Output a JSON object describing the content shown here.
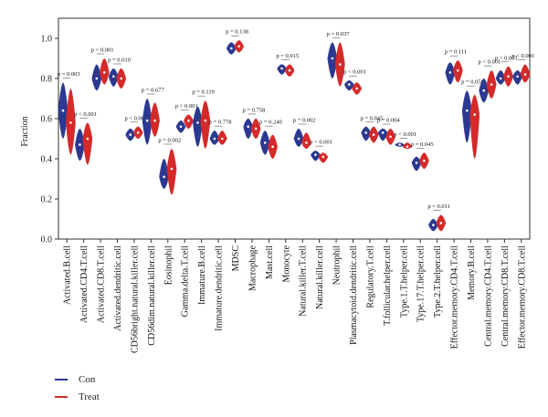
{
  "chart_data": {
    "type": "violin",
    "ylabel": "Fraction",
    "ylim": [
      0.0,
      1.1
    ],
    "yticks": [
      "0.0",
      "0.2",
      "0.4",
      "0.6",
      "0.8",
      "1.0"
    ],
    "legend": {
      "placement": "bottom-left"
    },
    "colors": {
      "Con": "#2b3990",
      "Treat": "#d42a2a"
    },
    "series": [
      {
        "name": "Con"
      },
      {
        "name": "Treat"
      }
    ],
    "categories": [
      "Activated.B.cell",
      "Activated.CD4.T.cell",
      "Activated.CD8.T.cell",
      "Activated.dendritic.cell",
      "CD56bright.natural.killer.cell",
      "CD56dim.natural.killer.cell",
      "Eosinophil",
      "Gamma.delta.T.cell",
      "Immature.B.cell",
      "Immature.dendritic.cell",
      "MDSC",
      "Macrophage",
      "Mast.cell",
      "Monocyte",
      "Natural.killer.T.cell",
      "Natural.killer.cell",
      "Neutrophil",
      "Plasmacytoid.dendritic.cell",
      "Regulatory.T.cell",
      "T.follicular.helper.cell",
      "Type.1.T.helper.cell",
      "Type.17.T.helper.cell",
      "Type.2.T.helper.cell",
      "Effector.memory.CD4.T.cell",
      "Memory.B.cell",
      "Central.memory.CD4.T.cell",
      "Central.memory.CD8.T.cell",
      "Effector.memory.CD8.T.cell"
    ],
    "p_values": [
      "p = 0.003",
      "p < 0.001",
      "p < 0.001",
      "p = 0.010",
      "p < 0.001",
      "p = 0.677",
      "p = 0.002",
      "p < 0.001",
      "p = 0.119",
      "p = 0.778",
      "p = 0.138",
      "p = 0.758",
      "p = 0.240",
      "p = 0.015",
      "p = 0.002",
      "p < 0.001",
      "p = 0.037",
      "p < 0.001",
      "p = 0.045",
      "p = 0.004",
      "p < 0.001",
      "p = 0.045",
      "p = 0.011",
      "p = 0.111",
      "p = 0.058",
      "p < 0.001",
      "p < 0.001",
      "p < 0.001"
    ],
    "violins": [
      {
        "con": {
          "median": 0.64,
          "min": 0.5,
          "max": 0.78
        },
        "treat": {
          "median": 0.58,
          "min": 0.42,
          "max": 0.75
        }
      },
      {
        "con": {
          "median": 0.47,
          "min": 0.39,
          "max": 0.55
        },
        "treat": {
          "median": 0.5,
          "min": 0.37,
          "max": 0.58
        }
      },
      {
        "con": {
          "median": 0.8,
          "min": 0.74,
          "max": 0.87
        },
        "treat": {
          "median": 0.83,
          "min": 0.77,
          "max": 0.9
        }
      },
      {
        "con": {
          "median": 0.81,
          "min": 0.76,
          "max": 0.85
        },
        "treat": {
          "median": 0.8,
          "min": 0.75,
          "max": 0.85
        }
      },
      {
        "con": {
          "median": 0.52,
          "min": 0.49,
          "max": 0.55
        },
        "treat": {
          "median": 0.53,
          "min": 0.5,
          "max": 0.56
        }
      },
      {
        "con": {
          "median": 0.59,
          "min": 0.47,
          "max": 0.7
        },
        "treat": {
          "median": 0.59,
          "min": 0.51,
          "max": 0.68
        }
      },
      {
        "con": {
          "median": 0.31,
          "min": 0.25,
          "max": 0.4
        },
        "treat": {
          "median": 0.35,
          "min": 0.22,
          "max": 0.45
        }
      },
      {
        "con": {
          "median": 0.56,
          "min": 0.53,
          "max": 0.59
        },
        "treat": {
          "median": 0.59,
          "min": 0.55,
          "max": 0.62
        }
      },
      {
        "con": {
          "median": 0.58,
          "min": 0.46,
          "max": 0.66
        },
        "treat": {
          "median": 0.59,
          "min": 0.45,
          "max": 0.69
        }
      },
      {
        "con": {
          "median": 0.5,
          "min": 0.47,
          "max": 0.54
        },
        "treat": {
          "median": 0.5,
          "min": 0.47,
          "max": 0.54
        }
      },
      {
        "con": {
          "median": 0.95,
          "min": 0.92,
          "max": 0.98
        },
        "treat": {
          "median": 0.96,
          "min": 0.93,
          "max": 0.99
        }
      },
      {
        "con": {
          "median": 0.56,
          "min": 0.5,
          "max": 0.6
        },
        "treat": {
          "median": 0.55,
          "min": 0.5,
          "max": 0.6
        }
      },
      {
        "con": {
          "median": 0.48,
          "min": 0.42,
          "max": 0.54
        },
        "treat": {
          "median": 0.46,
          "min": 0.4,
          "max": 0.52
        }
      },
      {
        "con": {
          "median": 0.85,
          "min": 0.82,
          "max": 0.87
        },
        "treat": {
          "median": 0.84,
          "min": 0.81,
          "max": 0.87
        }
      },
      {
        "con": {
          "median": 0.5,
          "min": 0.46,
          "max": 0.55
        },
        "treat": {
          "median": 0.48,
          "min": 0.45,
          "max": 0.53
        }
      },
      {
        "con": {
          "median": 0.42,
          "min": 0.39,
          "max": 0.44
        },
        "treat": {
          "median": 0.41,
          "min": 0.38,
          "max": 0.43
        }
      },
      {
        "con": {
          "median": 0.9,
          "min": 0.8,
          "max": 0.98
        },
        "treat": {
          "median": 0.87,
          "min": 0.76,
          "max": 0.98
        }
      },
      {
        "con": {
          "median": 0.77,
          "min": 0.74,
          "max": 0.79
        },
        "treat": {
          "median": 0.75,
          "min": 0.72,
          "max": 0.78
        }
      },
      {
        "con": {
          "median": 0.53,
          "min": 0.49,
          "max": 0.56
        },
        "treat": {
          "median": 0.52,
          "min": 0.48,
          "max": 0.56
        }
      },
      {
        "con": {
          "median": 0.53,
          "min": 0.49,
          "max": 0.55
        },
        "treat": {
          "median": 0.51,
          "min": 0.47,
          "max": 0.55
        }
      },
      {
        "con": {
          "median": 0.47,
          "min": 0.46,
          "max": 0.48
        },
        "treat": {
          "median": 0.46,
          "min": 0.45,
          "max": 0.48
        }
      },
      {
        "con": {
          "median": 0.38,
          "min": 0.34,
          "max": 0.41
        },
        "treat": {
          "median": 0.39,
          "min": 0.35,
          "max": 0.43
        }
      },
      {
        "con": {
          "median": 0.07,
          "min": 0.04,
          "max": 0.1
        },
        "treat": {
          "median": 0.08,
          "min": 0.04,
          "max": 0.12
        }
      },
      {
        "con": {
          "median": 0.83,
          "min": 0.77,
          "max": 0.88
        },
        "treat": {
          "median": 0.84,
          "min": 0.78,
          "max": 0.89
        }
      },
      {
        "con": {
          "median": 0.64,
          "min": 0.48,
          "max": 0.74
        },
        "treat": {
          "median": 0.62,
          "min": 0.4,
          "max": 0.72
        }
      },
      {
        "con": {
          "median": 0.74,
          "min": 0.68,
          "max": 0.8
        },
        "treat": {
          "median": 0.77,
          "min": 0.7,
          "max": 0.84
        }
      },
      {
        "con": {
          "median": 0.8,
          "min": 0.77,
          "max": 0.84
        },
        "treat": {
          "median": 0.81,
          "min": 0.76,
          "max": 0.86
        }
      },
      {
        "con": {
          "median": 0.81,
          "min": 0.77,
          "max": 0.84
        },
        "treat": {
          "median": 0.82,
          "min": 0.78,
          "max": 0.87
        }
      }
    ]
  }
}
